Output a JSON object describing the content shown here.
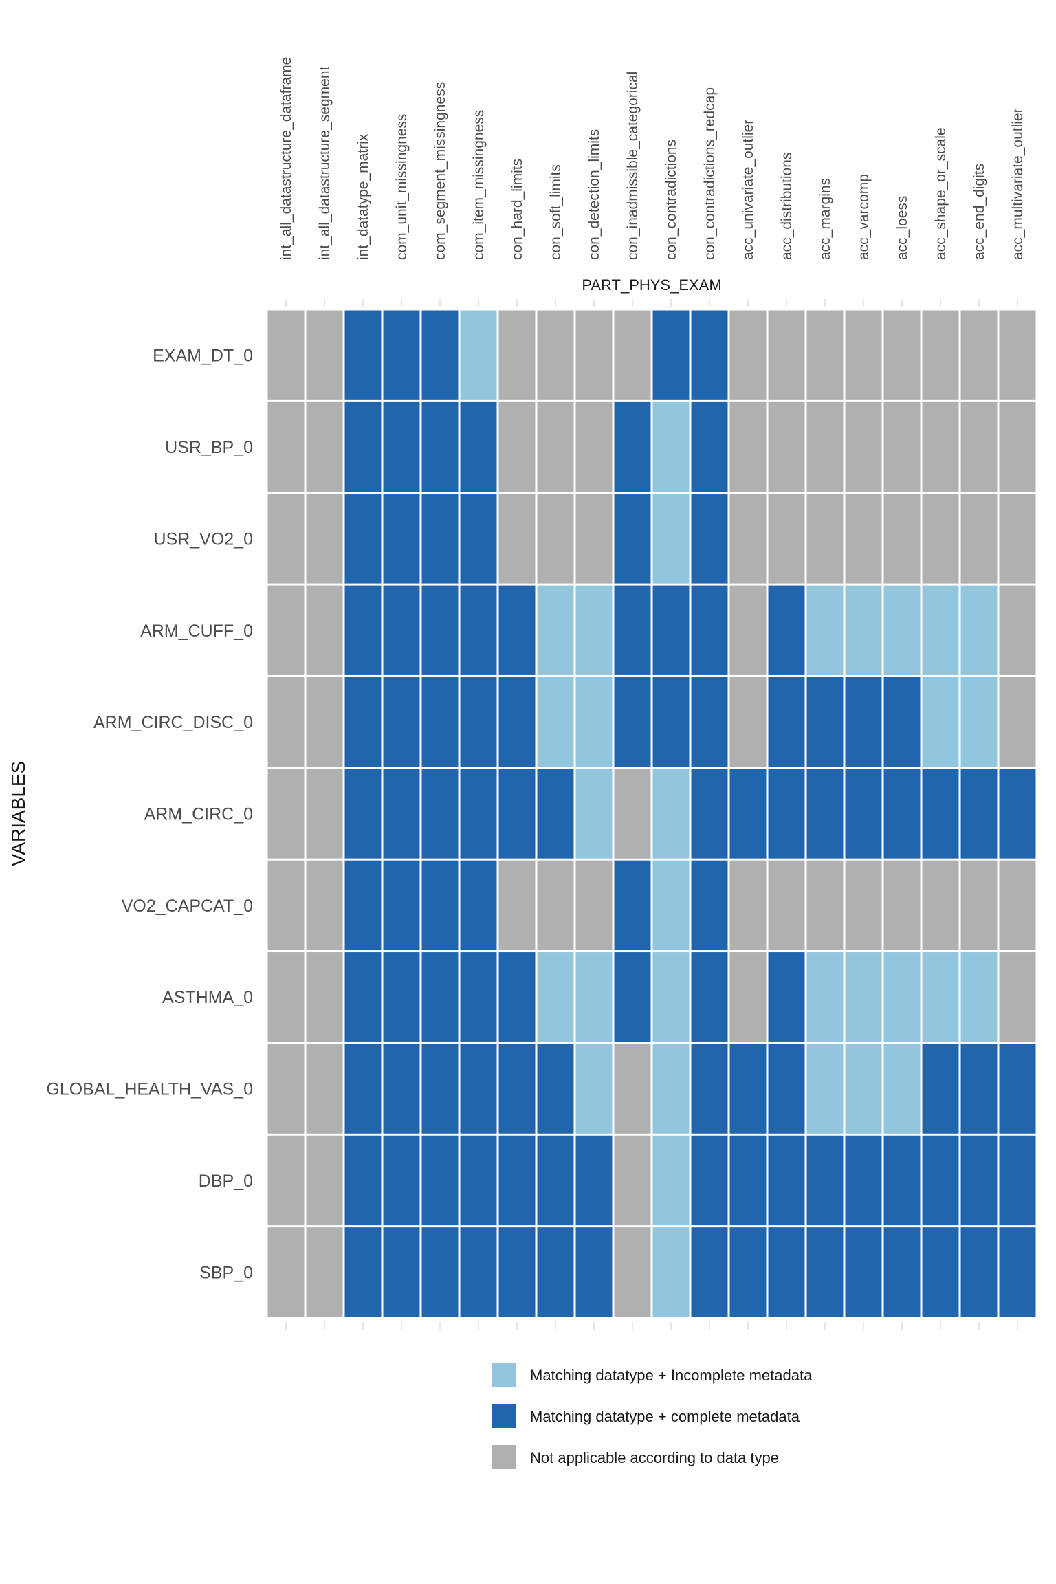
{
  "chart_data": {
    "type": "heatmap",
    "title": "",
    "xlabel": "PART_PHYS_EXAM",
    "ylabel": "VARIABLES",
    "x_axis_position": "top",
    "grid": false,
    "legend_position": "bottom",
    "columns": [
      "int_all_datastructure_dataframe",
      "int_all_datastructure_segment",
      "int_datatype_matrix",
      "com_unit_missingness",
      "com_segment_missingness",
      "com_item_missingness",
      "con_hard_limits",
      "con_soft_limits",
      "con_detection_limits",
      "con_inadmissible_categorical",
      "con_contradictions",
      "con_contradictions_redcap",
      "acc_univariate_outlier",
      "acc_distributions",
      "acc_margins",
      "acc_varcomp",
      "acc_loess",
      "acc_shape_or_scale",
      "acc_end_digits",
      "acc_multivariate_outlier"
    ],
    "rows": [
      "EXAM_DT_0",
      "USR_BP_0",
      "USR_VO2_0",
      "ARM_CUFF_0",
      "ARM_CIRC_DISC_0",
      "ARM_CIRC_0",
      "VO2_CAPCAT_0",
      "ASTHMA_0",
      "GLOBAL_HEALTH_VAS_0",
      "DBP_0",
      "SBP_0"
    ],
    "categories": {
      "L": {
        "label": "Matching datatype + Incomplete metadata",
        "color": "#92C5DE"
      },
      "D": {
        "label": "Matching datatype + complete metadata",
        "color": "#2166AC"
      },
      "G": {
        "label": "Not applicable according to data type",
        "color": "#B0B0B0"
      }
    },
    "legend_order": [
      "L",
      "D",
      "G"
    ],
    "values": [
      [
        "G",
        "G",
        "D",
        "D",
        "D",
        "L",
        "G",
        "G",
        "G",
        "G",
        "D",
        "D",
        "G",
        "G",
        "G",
        "G",
        "G",
        "G",
        "G",
        "G"
      ],
      [
        "G",
        "G",
        "D",
        "D",
        "D",
        "D",
        "G",
        "G",
        "G",
        "D",
        "L",
        "D",
        "G",
        "G",
        "G",
        "G",
        "G",
        "G",
        "G",
        "G"
      ],
      [
        "G",
        "G",
        "D",
        "D",
        "D",
        "D",
        "G",
        "G",
        "G",
        "D",
        "L",
        "D",
        "G",
        "G",
        "G",
        "G",
        "G",
        "G",
        "G",
        "G"
      ],
      [
        "G",
        "G",
        "D",
        "D",
        "D",
        "D",
        "D",
        "L",
        "L",
        "D",
        "D",
        "D",
        "G",
        "D",
        "L",
        "L",
        "L",
        "L",
        "L",
        "G"
      ],
      [
        "G",
        "G",
        "D",
        "D",
        "D",
        "D",
        "D",
        "L",
        "L",
        "D",
        "D",
        "D",
        "G",
        "D",
        "D",
        "D",
        "D",
        "L",
        "L",
        "G"
      ],
      [
        "G",
        "G",
        "D",
        "D",
        "D",
        "D",
        "D",
        "D",
        "L",
        "G",
        "L",
        "D",
        "D",
        "D",
        "D",
        "D",
        "D",
        "D",
        "D",
        "D"
      ],
      [
        "G",
        "G",
        "D",
        "D",
        "D",
        "D",
        "G",
        "G",
        "G",
        "D",
        "L",
        "D",
        "G",
        "G",
        "G",
        "G",
        "G",
        "G",
        "G",
        "G"
      ],
      [
        "G",
        "G",
        "D",
        "D",
        "D",
        "D",
        "D",
        "L",
        "L",
        "D",
        "L",
        "D",
        "G",
        "D",
        "L",
        "L",
        "L",
        "L",
        "L",
        "G"
      ],
      [
        "G",
        "G",
        "D",
        "D",
        "D",
        "D",
        "D",
        "D",
        "L",
        "G",
        "L",
        "D",
        "D",
        "D",
        "L",
        "L",
        "L",
        "D",
        "D",
        "D"
      ],
      [
        "G",
        "G",
        "D",
        "D",
        "D",
        "D",
        "D",
        "D",
        "D",
        "G",
        "L",
        "D",
        "D",
        "D",
        "D",
        "D",
        "D",
        "D",
        "D",
        "D"
      ],
      [
        "G",
        "G",
        "D",
        "D",
        "D",
        "D",
        "D",
        "D",
        "D",
        "G",
        "L",
        "D",
        "D",
        "D",
        "D",
        "D",
        "D",
        "D",
        "D",
        "D"
      ]
    ]
  }
}
